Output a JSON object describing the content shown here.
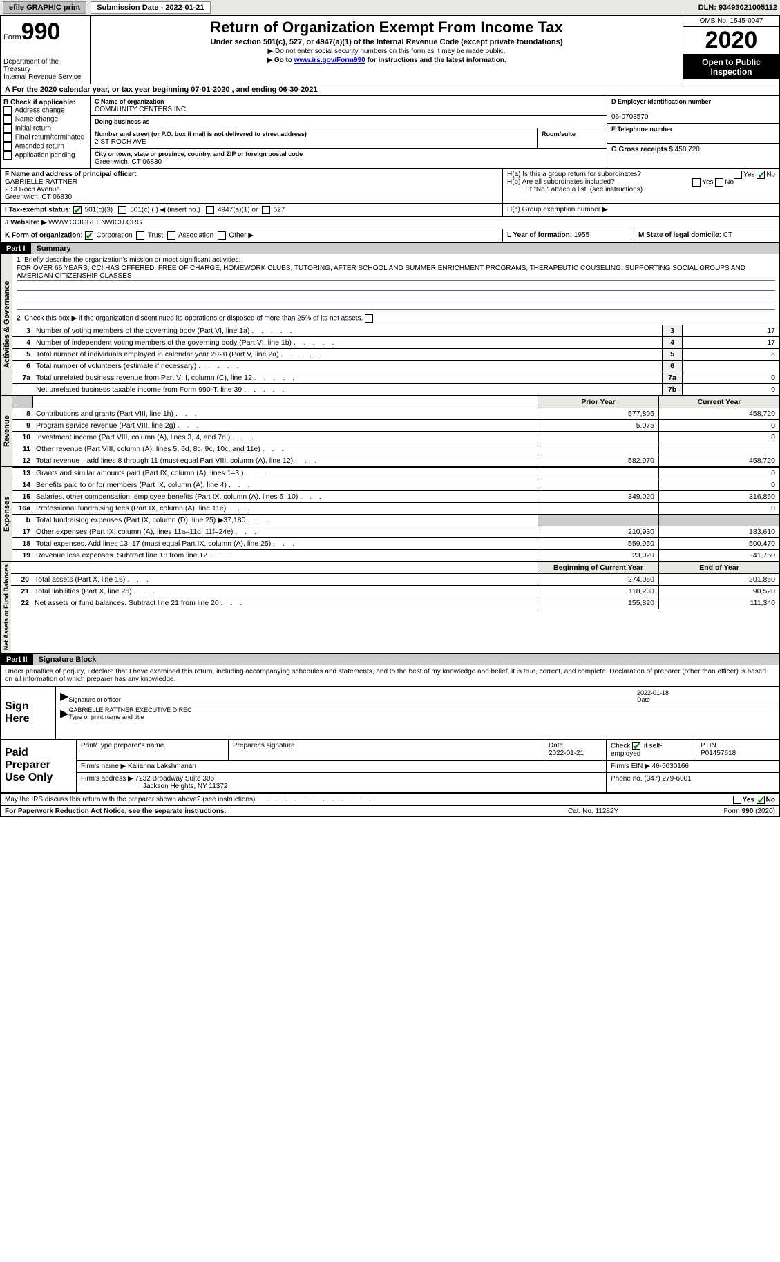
{
  "topbar": {
    "efile": "efile GRAPHIC print",
    "submission": "Submission Date - 2022-01-21",
    "dln": "DLN: 93493021005112"
  },
  "header": {
    "form_word": "Form",
    "form_num": "990",
    "dept": "Department of the Treasury",
    "irs": "Internal Revenue Service",
    "title": "Return of Organization Exempt From Income Tax",
    "subtitle": "Under section 501(c), 527, or 4947(a)(1) of the Internal Revenue Code (except private foundations)",
    "instr1": "▶ Do not enter social security numbers on this form as it may be made public.",
    "instr2_pre": "▶ Go to ",
    "instr2_link": "www.irs.gov/Form990",
    "instr2_post": " for instructions and the latest information.",
    "omb": "OMB No. 1545-0047",
    "year": "2020",
    "inspect1": "Open to Public",
    "inspect2": "Inspection"
  },
  "line_a": "For the 2020 calendar year, or tax year beginning 07-01-2020   , and ending 06-30-2021",
  "box_b": {
    "title": "B Check if applicable:",
    "opts": [
      "Address change",
      "Name change",
      "Initial return",
      "Final return/terminated",
      "Amended return",
      "Application pending"
    ]
  },
  "box_c": {
    "label": "C Name of organization",
    "name": "COMMUNITY CENTERS INC",
    "dba_label": "Doing business as",
    "addr_label": "Number and street (or P.O. box if mail is not delivered to street address)",
    "addr": "2 ST ROCH AVE",
    "room_label": "Room/suite",
    "city_label": "City or town, state or province, country, and ZIP or foreign postal code",
    "city": "Greenwich, CT  06830"
  },
  "box_d": {
    "label": "D Employer identification number",
    "val": "06-0703570"
  },
  "box_e": {
    "label": "E Telephone number"
  },
  "box_g": {
    "label": "G Gross receipts $",
    "val": "458,720"
  },
  "box_f": {
    "label": "F Name and address of principal officer:",
    "name": "GABRIELLE RATTNER",
    "addr1": "2 St Roch Avenue",
    "addr2": "Greenwich, CT  06830"
  },
  "box_h": {
    "ha": "H(a)  Is this a group return for subordinates?",
    "hb": "H(b)  Are all subordinates included?",
    "hb_note": "If \"No,\" attach a list. (see instructions)",
    "hc": "H(c)  Group exemption number ▶",
    "yes": "Yes",
    "no": "No"
  },
  "row_i": {
    "label": "I  Tax-exempt status:",
    "o1": "501(c)(3)",
    "o2": "501(c) (  ) ◀ (insert no.)",
    "o3": "4947(a)(1) or",
    "o4": "527"
  },
  "row_j": {
    "label": "J  Website: ▶",
    "val": "WWW.CCIGREENWICH.ORG"
  },
  "row_k": {
    "label": "K Form of organization:",
    "o1": "Corporation",
    "o2": "Trust",
    "o3": "Association",
    "o4": "Other ▶"
  },
  "row_l": {
    "label": "L Year of formation:",
    "val": "1955"
  },
  "row_m": {
    "label": "M State of legal domicile:",
    "val": "CT"
  },
  "part1": {
    "tag": "Part I",
    "title": "Summary"
  },
  "summary": {
    "q1": "Briefly describe the organization's mission or most significant activities:",
    "mission": "FOR OVER 66 YEARS, CCI HAS OFFERED, FREE OF CHARGE, HOMEWORK CLUBS, TUTORING, AFTER SCHOOL AND SUMMER ENRICHMENT PROGRAMS, THERAPEUTIC COUSELING, SUPPORTING SOCIAL GROUPS AND AMERICAN CITIZENSHIP CLASSES",
    "q2": "Check this box ▶      if the organization discontinued its operations or disposed of more than 25% of its net assets.",
    "rows": [
      {
        "n": "3",
        "d": "Number of voting members of the governing body (Part VI, line 1a)",
        "box": "3",
        "v": "17"
      },
      {
        "n": "4",
        "d": "Number of independent voting members of the governing body (Part VI, line 1b)",
        "box": "4",
        "v": "17"
      },
      {
        "n": "5",
        "d": "Total number of individuals employed in calendar year 2020 (Part V, line 2a)",
        "box": "5",
        "v": "6"
      },
      {
        "n": "6",
        "d": "Total number of volunteers (estimate if necessary)",
        "box": "6",
        "v": ""
      },
      {
        "n": "7a",
        "d": "Total unrelated business revenue from Part VIII, column (C), line 12",
        "box": "7a",
        "v": "0"
      },
      {
        "n": "",
        "d": "Net unrelated business taxable income from Form 990-T, line 39",
        "box": "7b",
        "v": "0"
      }
    ]
  },
  "fin_headers": {
    "prior": "Prior Year",
    "current": "Current Year",
    "boy": "Beginning of Current Year",
    "eoy": "End of Year"
  },
  "revenue": {
    "label": "Revenue",
    "rows": [
      {
        "n": "8",
        "d": "Contributions and grants (Part VIII, line 1h)",
        "c1": "577,895",
        "c2": "458,720"
      },
      {
        "n": "9",
        "d": "Program service revenue (Part VIII, line 2g)",
        "c1": "5,075",
        "c2": "0"
      },
      {
        "n": "10",
        "d": "Investment income (Part VIII, column (A), lines 3, 4, and 7d )",
        "c1": "",
        "c2": "0"
      },
      {
        "n": "11",
        "d": "Other revenue (Part VIII, column (A), lines 5, 6d, 8c, 9c, 10c, and 11e)",
        "c1": "",
        "c2": ""
      },
      {
        "n": "12",
        "d": "Total revenue—add lines 8 through 11 (must equal Part VIII, column (A), line 12)",
        "c1": "582,970",
        "c2": "458,720"
      }
    ]
  },
  "expenses": {
    "label": "Expenses",
    "rows": [
      {
        "n": "13",
        "d": "Grants and similar amounts paid (Part IX, column (A), lines 1–3 )",
        "c1": "",
        "c2": "0"
      },
      {
        "n": "14",
        "d": "Benefits paid to or for members (Part IX, column (A), line 4)",
        "c1": "",
        "c2": "0"
      },
      {
        "n": "15",
        "d": "Salaries, other compensation, employee benefits (Part IX, column (A), lines 5–10)",
        "c1": "349,020",
        "c2": "316,860"
      },
      {
        "n": "16a",
        "d": "Professional fundraising fees (Part IX, column (A), line 11e)",
        "c1": "",
        "c2": "0"
      },
      {
        "n": "b",
        "d": "Total fundraising expenses (Part IX, column (D), line 25) ▶37,180",
        "c1": "grey",
        "c2": "grey"
      },
      {
        "n": "17",
        "d": "Other expenses (Part IX, column (A), lines 11a–11d, 11f–24e)",
        "c1": "210,930",
        "c2": "183,610"
      },
      {
        "n": "18",
        "d": "Total expenses. Add lines 13–17 (must equal Part IX, column (A), line 25)",
        "c1": "559,950",
        "c2": "500,470"
      },
      {
        "n": "19",
        "d": "Revenue less expenses. Subtract line 18 from line 12",
        "c1": "23,020",
        "c2": "-41,750"
      }
    ]
  },
  "netassets": {
    "label": "Net Assets or Fund Balances",
    "rows": [
      {
        "n": "20",
        "d": "Total assets (Part X, line 16)",
        "c1": "274,050",
        "c2": "201,860"
      },
      {
        "n": "21",
        "d": "Total liabilities (Part X, line 26)",
        "c1": "118,230",
        "c2": "90,520"
      },
      {
        "n": "22",
        "d": "Net assets or fund balances. Subtract line 21 from line 20",
        "c1": "155,820",
        "c2": "111,340"
      }
    ]
  },
  "part2": {
    "tag": "Part II",
    "title": "Signature Block"
  },
  "sig_decl": "Under penalties of perjury, I declare that I have examined this return, including accompanying schedules and statements, and to the best of my knowledge and belief, it is true, correct, and complete. Declaration of preparer (other than officer) is based on all information of which preparer has any knowledge.",
  "sign": {
    "label": "Sign Here",
    "sig_label": "Signature of officer",
    "date": "2022-01-18",
    "date_label": "Date",
    "name": "GABRIELLE RATTNER  EXECUTIVE DIREC",
    "name_label": "Type or print name and title"
  },
  "prep": {
    "label": "Paid Preparer Use Only",
    "h1": "Print/Type preparer's name",
    "h2": "Preparer's signature",
    "h3": "Date",
    "h3v": "2022-01-21",
    "h4": "Check        if self-employed",
    "h5": "PTIN",
    "h5v": "P01457618",
    "firm_label": "Firm's name    ▶",
    "firm": "Kalianna Lakshmanan",
    "ein_label": "Firm's EIN ▶",
    "ein": "46-5030166",
    "addr_label": "Firm's address ▶",
    "addr1": "7232 Broadway Suite 306",
    "addr2": "Jackson Heights, NY  11372",
    "phone_label": "Phone no.",
    "phone": "(347) 279-6001"
  },
  "discuss": "May the IRS discuss this return with the preparer shown above? (see instructions)",
  "footer": {
    "left": "For Paperwork Reduction Act Notice, see the separate instructions.",
    "mid": "Cat. No. 11282Y",
    "right": "Form 990 (2020)"
  },
  "gov_label": "Activities & Governance"
}
